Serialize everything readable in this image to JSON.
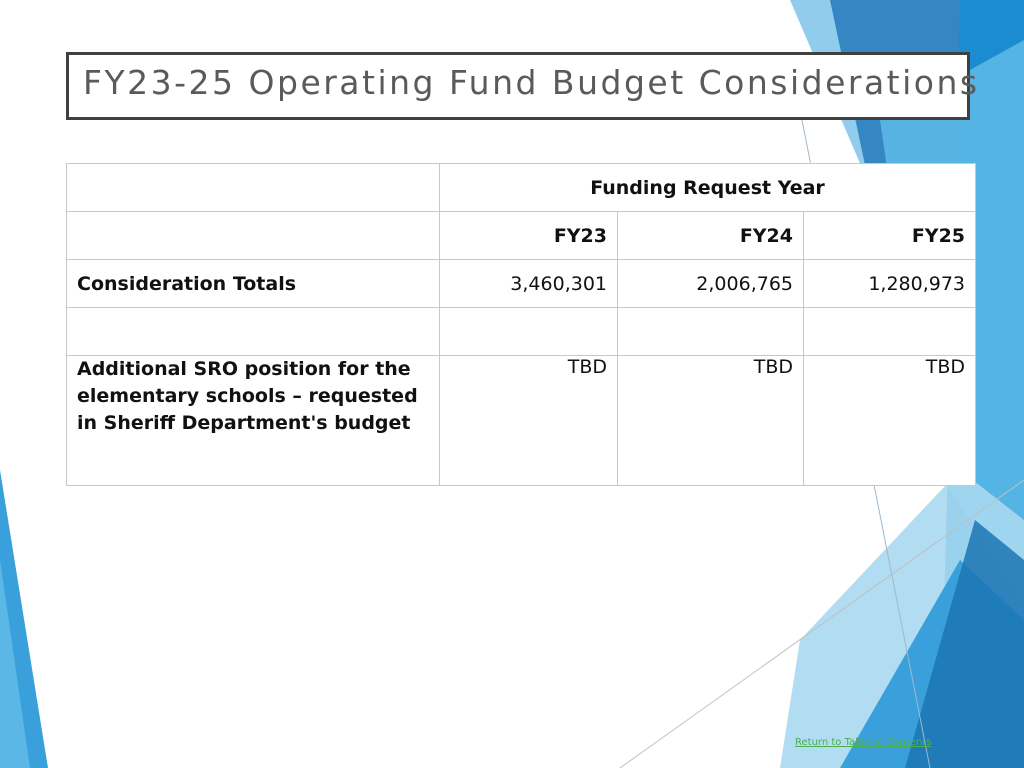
{
  "slide": {
    "title": "FY23-25 Operating Fund Budget Considerations",
    "footer_link": "Return to Table of Contents",
    "accent_colors": [
      "#1a8ccf",
      "#3aa0dc",
      "#5bb8e6",
      "#a9d8f0",
      "#2b6fa8"
    ]
  },
  "table": {
    "group_header": "Funding Request Year",
    "columns": [
      "FY23",
      "FY24",
      "FY25"
    ],
    "rows": [
      {
        "label": "Consideration Totals",
        "values": [
          "3,460,301",
          "2,006,765",
          "1,280,973"
        ]
      },
      {
        "label": "",
        "values": [
          "",
          "",
          ""
        ]
      },
      {
        "label": "Additional SRO position for the elementary schools – requested in Sheriff Department's budget",
        "values": [
          "TBD",
          "TBD",
          "TBD"
        ]
      }
    ]
  }
}
